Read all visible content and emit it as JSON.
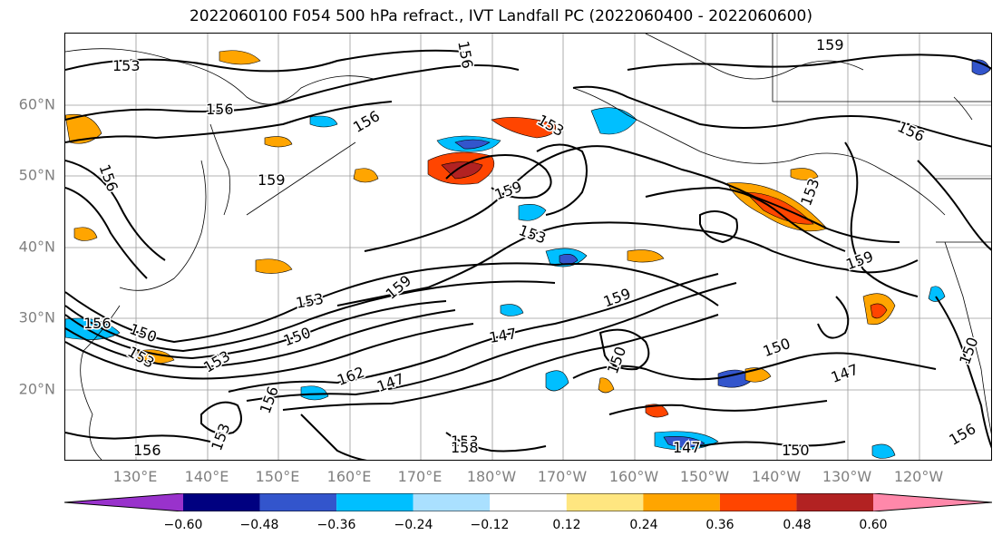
{
  "title": "2022060100 F054 500 hPa refract., IVT Landfall PC (2022060400 - 2022060600)",
  "map": {
    "lat_labels": [
      "60°N",
      "50°N",
      "40°N",
      "30°N",
      "20°N"
    ],
    "lon_labels": [
      "130°E",
      "140°E",
      "150°E",
      "160°E",
      "170°E",
      "180°W",
      "170°W",
      "160°W",
      "150°W",
      "140°W",
      "130°W",
      "120°W"
    ],
    "contour_labels": [
      "153",
      "156",
      "159",
      "156",
      "156",
      "153",
      "156",
      "153",
      "150",
      "159",
      "159",
      "153",
      "153",
      "156",
      "150",
      "147",
      "162",
      "153",
      "156",
      "153",
      "150",
      "147",
      "159",
      "159",
      "156",
      "159",
      "150",
      "150",
      "147",
      "147",
      "150",
      "156",
      "153",
      "156",
      "158",
      "153"
    ]
  },
  "colorbar": {
    "ticks": [
      "−0.60",
      "−0.48",
      "−0.36",
      "−0.24",
      "−0.12",
      "0.12",
      "0.24",
      "0.36",
      "0.48",
      "0.60"
    ],
    "colors": [
      "#9932cc",
      "#000080",
      "#3355cc",
      "#00bfff",
      "#aae0ff",
      "#ffffff",
      "#ffe680",
      "#ffa500",
      "#ff4500",
      "#b22222",
      "#ff88aa"
    ]
  }
}
